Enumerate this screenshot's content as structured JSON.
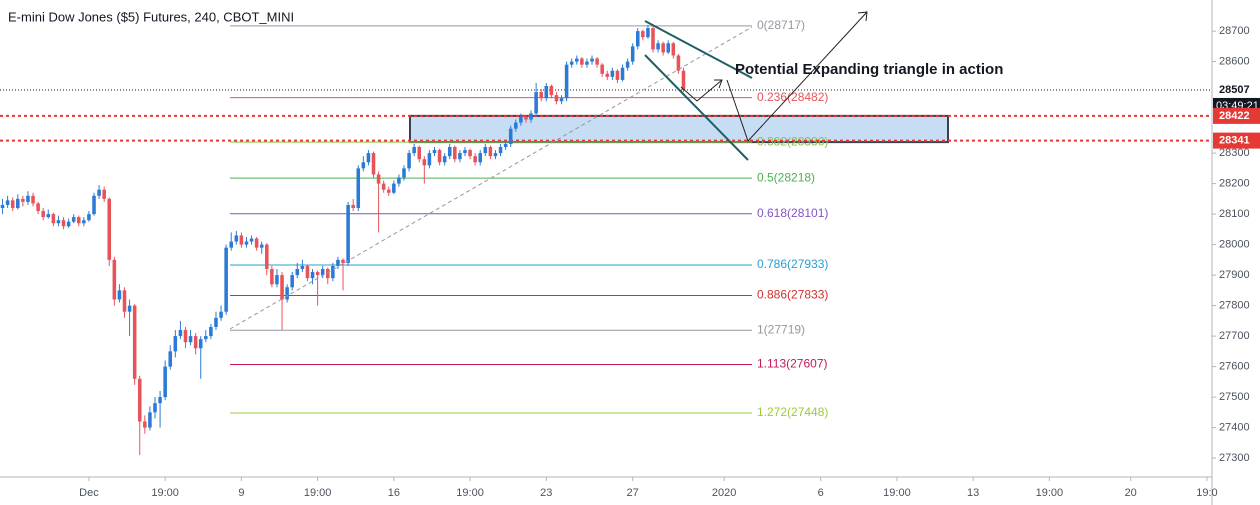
{
  "chart_data": {
    "type": "candlestick",
    "title": "E-mini Dow Jones ($5) Futures, 240, CBOT_MINI",
    "annotation": "Potential Expanding triangle in action",
    "countdown": "03:49:21",
    "up_color": "#2b7bd6",
    "down_color": "#e8535a",
    "grid": true,
    "xlim": [
      -0.5,
      238
    ],
    "xticks": [
      {
        "value": 17,
        "label": "Dec"
      },
      {
        "value": 32,
        "label": "19:00"
      },
      {
        "value": 47,
        "label": "9"
      },
      {
        "value": 62,
        "label": "19:00"
      },
      {
        "value": 77,
        "label": "16"
      },
      {
        "value": 92,
        "label": "19:00"
      },
      {
        "value": 107,
        "label": "23"
      },
      {
        "value": 124,
        "label": "27"
      },
      {
        "value": 142,
        "label": "2020"
      },
      {
        "value": 161,
        "label": "6"
      },
      {
        "value": 176,
        "label": "19:00"
      },
      {
        "value": 191,
        "label": "13"
      },
      {
        "value": 206,
        "label": "19:00"
      },
      {
        "value": 222,
        "label": "20"
      },
      {
        "value": 237,
        "label": "19:0"
      }
    ],
    "ylim": [
      27238,
      28802
    ],
    "yticks": [
      27300,
      27400,
      27500,
      27600,
      27700,
      27800,
      27900,
      28000,
      28100,
      28200,
      28300,
      28600,
      28700
    ],
    "hlines": [
      28422,
      28341
    ],
    "hline_color": "#e53935",
    "zone": [
      28422,
      28336
    ],
    "fib_levels": [
      {
        "value": 28717,
        "label": "0(28717)",
        "color": "#9598a1"
      },
      {
        "value": 28482,
        "label": "0.236(28482)",
        "color": "#e8535a"
      },
      {
        "value": 28336,
        "label": "0.382(28336)",
        "color": "#8bc34a"
      },
      {
        "value": 28218,
        "label": "0.5(28218)",
        "color": "#4caf50"
      },
      {
        "value": 28101,
        "label": "0.618(28101)",
        "color": "#7e57c2"
      },
      {
        "value": 27933,
        "label": "0.786(27933)",
        "color": "#2a9fd0"
      },
      {
        "value": 27833,
        "label": "0.886(27833)",
        "color": "#d32f2f"
      },
      {
        "value": 27719,
        "label": "1(27719)",
        "color": "#9598a1"
      },
      {
        "value": 27607,
        "label": "1.113(27607)",
        "color": "#c2185b"
      },
      {
        "value": 27448,
        "label": "1.272(27448)",
        "color": "#9ccc3a"
      }
    ],
    "ohlc": [
      [
        28120,
        28150,
        28100,
        28130
      ],
      [
        28130,
        28160,
        28120,
        28145
      ],
      [
        28145,
        28155,
        28110,
        28120
      ],
      [
        28120,
        28165,
        28115,
        28150
      ],
      [
        28150,
        28160,
        28125,
        28140
      ],
      [
        28140,
        28175,
        28130,
        28160
      ],
      [
        28160,
        28170,
        28125,
        28135
      ],
      [
        28135,
        28140,
        28100,
        28110
      ],
      [
        28110,
        28120,
        28080,
        28090
      ],
      [
        28090,
        28115,
        28085,
        28100
      ],
      [
        28100,
        28105,
        28060,
        28070
      ],
      [
        28070,
        28095,
        28060,
        28080
      ],
      [
        28080,
        28090,
        28050,
        28060
      ],
      [
        28060,
        28085,
        28055,
        28075
      ],
      [
        28075,
        28100,
        28070,
        28090
      ],
      [
        28090,
        28095,
        28060,
        28070
      ],
      [
        28070,
        28090,
        28060,
        28080
      ],
      [
        28080,
        28110,
        28075,
        28100
      ],
      [
        28100,
        28170,
        28095,
        28160
      ],
      [
        28160,
        28195,
        28150,
        28180
      ],
      [
        28180,
        28190,
        28140,
        28150
      ],
      [
        28150,
        28155,
        27930,
        27950
      ],
      [
        27950,
        27960,
        27800,
        27820
      ],
      [
        27820,
        27870,
        27810,
        27850
      ],
      [
        27850,
        27860,
        27760,
        27780
      ],
      [
        27780,
        27820,
        27700,
        27800
      ],
      [
        27800,
        27805,
        27540,
        27560
      ],
      [
        27560,
        27570,
        27310,
        27420
      ],
      [
        27420,
        27440,
        27380,
        27400
      ],
      [
        27400,
        27470,
        27390,
        27450
      ],
      [
        27450,
        27500,
        27430,
        27480
      ],
      [
        27480,
        27520,
        27400,
        27500
      ],
      [
        27500,
        27620,
        27490,
        27600
      ],
      [
        27600,
        27670,
        27590,
        27650
      ],
      [
        27650,
        27720,
        27630,
        27700
      ],
      [
        27700,
        27750,
        27690,
        27720
      ],
      [
        27720,
        27730,
        27660,
        27680
      ],
      [
        27680,
        27720,
        27670,
        27700
      ],
      [
        27700,
        27710,
        27640,
        27660
      ],
      [
        27660,
        27700,
        27560,
        27690
      ],
      [
        27690,
        27720,
        27680,
        27700
      ],
      [
        27700,
        27740,
        27690,
        27730
      ],
      [
        27730,
        27780,
        27720,
        27760
      ],
      [
        27760,
        27800,
        27750,
        27780
      ],
      [
        27780,
        28000,
        27770,
        27990
      ],
      [
        27990,
        28040,
        27980,
        28010
      ],
      [
        28010,
        28045,
        28000,
        28030
      ],
      [
        28030,
        28040,
        27990,
        28000
      ],
      [
        28000,
        28025,
        27990,
        28010
      ],
      [
        28010,
        28030,
        28000,
        28020
      ],
      [
        28020,
        28025,
        27980,
        27990
      ],
      [
        27990,
        28010,
        27970,
        28000
      ],
      [
        28000,
        28005,
        27900,
        27920
      ],
      [
        27920,
        27930,
        27860,
        27870
      ],
      [
        27870,
        27920,
        27860,
        27900
      ],
      [
        27900,
        27910,
        27720,
        27820
      ],
      [
        27820,
        27870,
        27810,
        27860
      ],
      [
        27860,
        27910,
        27850,
        27900
      ],
      [
        27900,
        27940,
        27890,
        27920
      ],
      [
        27920,
        27950,
        27910,
        27930
      ],
      [
        27930,
        27935,
        27880,
        27890
      ],
      [
        27890,
        27920,
        27870,
        27910
      ],
      [
        27910,
        27915,
        27800,
        27900
      ],
      [
        27900,
        27930,
        27890,
        27920
      ],
      [
        27920,
        27925,
        27870,
        27890
      ],
      [
        27890,
        27940,
        27880,
        27930
      ],
      [
        27930,
        27960,
        27920,
        27950
      ],
      [
        27950,
        27955,
        27850,
        27940
      ],
      [
        27940,
        28140,
        27930,
        28130
      ],
      [
        28130,
        28150,
        28110,
        28120
      ],
      [
        28120,
        28260,
        28110,
        28250
      ],
      [
        28250,
        28290,
        28240,
        28270
      ],
      [
        28270,
        28310,
        28260,
        28300
      ],
      [
        28300,
        28305,
        28220,
        28230
      ],
      [
        28230,
        28240,
        28040,
        28200
      ],
      [
        28200,
        28210,
        28170,
        28180
      ],
      [
        28180,
        28190,
        28160,
        28170
      ],
      [
        28170,
        28210,
        28165,
        28200
      ],
      [
        28200,
        28230,
        28190,
        28220
      ],
      [
        28220,
        28260,
        28210,
        28250
      ],
      [
        28250,
        28310,
        28240,
        28300
      ],
      [
        28300,
        28330,
        28290,
        28320
      ],
      [
        28320,
        28325,
        28270,
        28280
      ],
      [
        28280,
        28290,
        28200,
        28260
      ],
      [
        28260,
        28310,
        28250,
        28300
      ],
      [
        28300,
        28320,
        28290,
        28310
      ],
      [
        28310,
        28315,
        28260,
        28270
      ],
      [
        28270,
        28300,
        28260,
        28290
      ],
      [
        28290,
        28330,
        28280,
        28320
      ],
      [
        28320,
        28325,
        28270,
        28280
      ],
      [
        28280,
        28310,
        28270,
        28300
      ],
      [
        28300,
        28320,
        28290,
        28310
      ],
      [
        28310,
        28315,
        28280,
        28290
      ],
      [
        28290,
        28300,
        28260,
        28270
      ],
      [
        28270,
        28310,
        28260,
        28300
      ],
      [
        28300,
        28330,
        28290,
        28320
      ],
      [
        28320,
        28325,
        28280,
        28290
      ],
      [
        28290,
        28310,
        28280,
        28300
      ],
      [
        28300,
        28330,
        28290,
        28320
      ],
      [
        28320,
        28340,
        28310,
        28330
      ],
      [
        28330,
        28390,
        28320,
        28380
      ],
      [
        28380,
        28410,
        28370,
        28400
      ],
      [
        28400,
        28430,
        28390,
        28420
      ],
      [
        28420,
        28425,
        28400,
        28410
      ],
      [
        28410,
        28440,
        28400,
        28430
      ],
      [
        28430,
        28530,
        28420,
        28500
      ],
      [
        28500,
        28510,
        28470,
        28480
      ],
      [
        28480,
        28530,
        28470,
        28520
      ],
      [
        28520,
        28525,
        28480,
        28490
      ],
      [
        28490,
        28500,
        28460,
        28470
      ],
      [
        28470,
        28490,
        28460,
        28480
      ],
      [
        28480,
        28600,
        28470,
        28590
      ],
      [
        28590,
        28610,
        28580,
        28600
      ],
      [
        28600,
        28620,
        28590,
        28610
      ],
      [
        28610,
        28615,
        28580,
        28590
      ],
      [
        28590,
        28610,
        28580,
        28600
      ],
      [
        28600,
        28620,
        28590,
        28610
      ],
      [
        28610,
        28615,
        28580,
        28590
      ],
      [
        28590,
        28595,
        28550,
        28560
      ],
      [
        28560,
        28570,
        28540,
        28550
      ],
      [
        28550,
        28580,
        28540,
        28570
      ],
      [
        28570,
        28575,
        28530,
        28540
      ],
      [
        28540,
        28590,
        28535,
        28580
      ],
      [
        28580,
        28610,
        28570,
        28600
      ],
      [
        28600,
        28660,
        28590,
        28650
      ],
      [
        28650,
        28710,
        28640,
        28700
      ],
      [
        28700,
        28705,
        28670,
        28680
      ],
      [
        28680,
        28720,
        28675,
        28710
      ],
      [
        28710,
        28715,
        28630,
        28640
      ],
      [
        28640,
        28670,
        28630,
        28660
      ],
      [
        28660,
        28665,
        28620,
        28630
      ],
      [
        28630,
        28670,
        28625,
        28660
      ],
      [
        28660,
        28665,
        28610,
        28620
      ],
      [
        28620,
        28625,
        28560,
        28570
      ],
      [
        28570,
        28580,
        28500,
        28507
      ]
    ]
  }
}
